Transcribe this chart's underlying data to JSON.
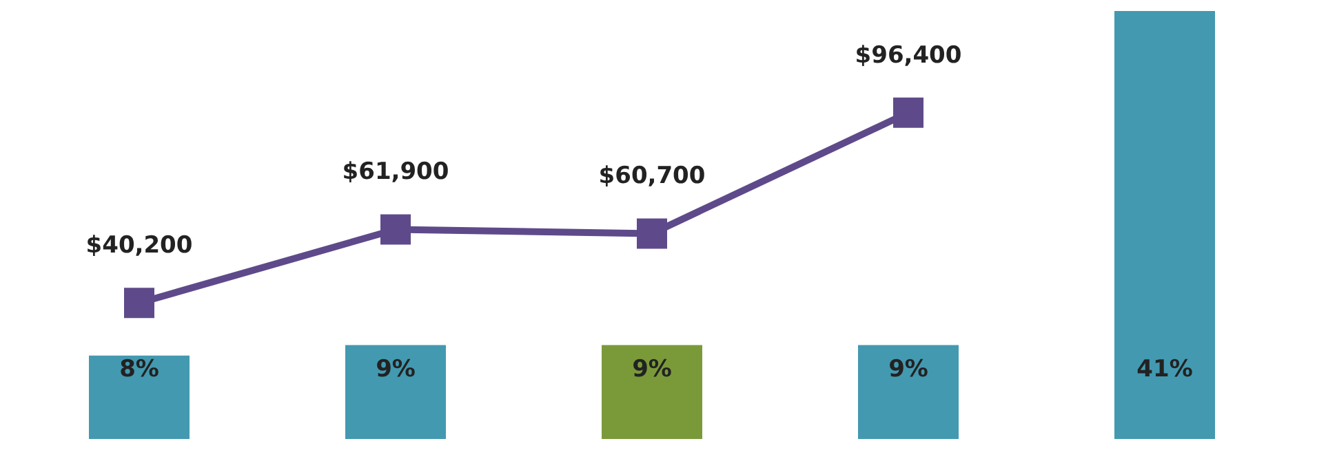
{
  "chart_data": [
    {
      "type": "bar",
      "categories": [
        null,
        null,
        null,
        null,
        null
      ],
      "colors": [
        "#4399b0",
        "#4399b0",
        "#7a9a3a",
        "#4399b0",
        "#4399b0"
      ],
      "values": [
        8,
        9,
        9,
        9,
        41
      ],
      "value_labels": [
        "8%",
        "9%",
        "9%",
        "9%",
        "41%"
      ]
    },
    {
      "type": "line",
      "categories": [
        null,
        null,
        null,
        null,
        null
      ],
      "color": "#5e4a8a",
      "marker": "square",
      "values": [
        40200,
        61900,
        60700,
        96400,
        null
      ],
      "value_labels": [
        "$40,200",
        "$61,900",
        "$60,700",
        "$96,400",
        null
      ]
    }
  ]
}
